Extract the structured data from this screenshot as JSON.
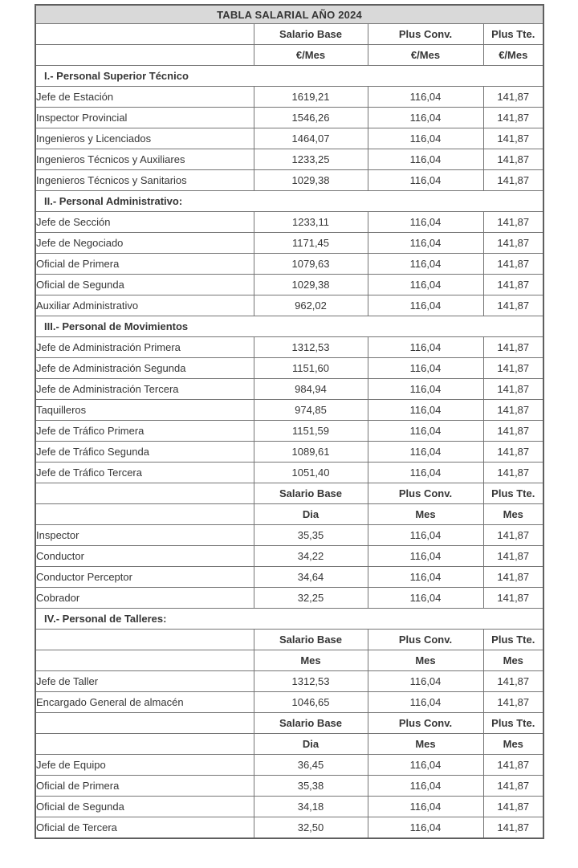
{
  "title": "TABLA SALARIAL AÑO 2024",
  "colors": {
    "title_background": "#d9d9d9",
    "border": "#757575",
    "text": "#363636"
  },
  "column_names": [
    "Salario Base",
    "Plus Conv.",
    "Plus Tte."
  ],
  "rows": [
    {
      "type": "header",
      "cells": [
        "Salario Base",
        "Plus Conv.",
        "Plus Tte."
      ]
    },
    {
      "type": "units",
      "cells": [
        "€/Mes",
        "€/Mes",
        "€/Mes"
      ]
    },
    {
      "type": "section",
      "label": "I.- Personal Superior Técnico"
    },
    {
      "type": "data",
      "label": "Jefe de Estación",
      "values": [
        "1619,21",
        "116,04",
        "141,87"
      ]
    },
    {
      "type": "data",
      "label": "Inspector Provincial",
      "values": [
        "1546,26",
        "116,04",
        "141,87"
      ]
    },
    {
      "type": "data",
      "label": "Ingenieros y Licenciados",
      "values": [
        "1464,07",
        "116,04",
        "141,87"
      ]
    },
    {
      "type": "data",
      "label": "Ingenieros Técnicos y Auxiliares",
      "values": [
        "1233,25",
        "116,04",
        "141,87"
      ]
    },
    {
      "type": "data",
      "label": "Ingenieros Técnicos y Sanitarios",
      "values": [
        "1029,38",
        "116,04",
        "141,87"
      ]
    },
    {
      "type": "section",
      "label": "II.- Personal Administrativo:"
    },
    {
      "type": "data",
      "label": "Jefe de Sección",
      "values": [
        "1233,11",
        "116,04",
        "141,87"
      ]
    },
    {
      "type": "data",
      "label": "Jefe de Negociado",
      "values": [
        "1171,45",
        "116,04",
        "141,87"
      ]
    },
    {
      "type": "data",
      "label": "Oficial de Primera",
      "values": [
        "1079,63",
        "116,04",
        "141,87"
      ]
    },
    {
      "type": "data",
      "label": "Oficial de Segunda",
      "values": [
        "1029,38",
        "116,04",
        "141,87"
      ]
    },
    {
      "type": "data",
      "label": "Auxiliar Administrativo",
      "values": [
        "962,02",
        "116,04",
        "141,87"
      ]
    },
    {
      "type": "section",
      "label": "III.- Personal de Movimientos"
    },
    {
      "type": "data",
      "label": "Jefe de Administración Primera",
      "values": [
        "1312,53",
        "116,04",
        "141,87"
      ]
    },
    {
      "type": "data",
      "label": "Jefe de Administración Segunda",
      "values": [
        "1151,60",
        "116,04",
        "141,87"
      ]
    },
    {
      "type": "data",
      "label": "Jefe de Administración Tercera",
      "values": [
        "984,94",
        "116,04",
        "141,87"
      ]
    },
    {
      "type": "data",
      "label": "Taquilleros",
      "values": [
        "974,85",
        "116,04",
        "141,87"
      ]
    },
    {
      "type": "data",
      "label": "Jefe de Tráfico Primera",
      "values": [
        "1151,59",
        "116,04",
        "141,87"
      ]
    },
    {
      "type": "data",
      "label": "Jefe de Tráfico Segunda",
      "values": [
        "1089,61",
        "116,04",
        "141,87"
      ]
    },
    {
      "type": "data",
      "label": "Jefe de Tráfico Tercera",
      "values": [
        "1051,40",
        "116,04",
        "141,87"
      ]
    },
    {
      "type": "header",
      "cells": [
        "Salario Base",
        "Plus Conv.",
        "Plus Tte."
      ]
    },
    {
      "type": "units",
      "cells": [
        "Dia",
        "Mes",
        "Mes"
      ]
    },
    {
      "type": "data",
      "label": "Inspector",
      "values": [
        "35,35",
        "116,04",
        "141,87"
      ]
    },
    {
      "type": "data",
      "label": "Conductor",
      "values": [
        "34,22",
        "116,04",
        "141,87"
      ]
    },
    {
      "type": "data",
      "label": "Conductor Perceptor",
      "values": [
        "34,64",
        "116,04",
        "141,87"
      ]
    },
    {
      "type": "data",
      "label": "Cobrador",
      "values": [
        "32,25",
        "116,04",
        "141,87"
      ]
    },
    {
      "type": "section",
      "label": "IV.- Personal de Talleres:"
    },
    {
      "type": "header",
      "cells": [
        "Salario Base",
        "Plus Conv.",
        "Plus Tte."
      ]
    },
    {
      "type": "units",
      "cells": [
        "Mes",
        "Mes",
        "Mes"
      ]
    },
    {
      "type": "data",
      "label": "Jefe de Taller",
      "values": [
        "1312,53",
        "116,04",
        "141,87"
      ]
    },
    {
      "type": "data",
      "label": "Encargado General de almacén",
      "values": [
        "1046,65",
        "116,04",
        "141,87"
      ]
    },
    {
      "type": "header",
      "cells": [
        "Salario Base",
        "Plus Conv.",
        "Plus Tte."
      ]
    },
    {
      "type": "units",
      "cells": [
        "Dia",
        "Mes",
        "Mes"
      ]
    },
    {
      "type": "data",
      "label": "Jefe de Equipo",
      "values": [
        "36,45",
        "116,04",
        "141,87"
      ]
    },
    {
      "type": "data",
      "label": "Oficial de Primera",
      "values": [
        "35,38",
        "116,04",
        "141,87"
      ]
    },
    {
      "type": "data",
      "label": "Oficial de Segunda",
      "values": [
        "34,18",
        "116,04",
        "141,87"
      ]
    },
    {
      "type": "data",
      "label": "Oficial de Tercera",
      "values": [
        "32,50",
        "116,04",
        "141,87"
      ]
    }
  ]
}
